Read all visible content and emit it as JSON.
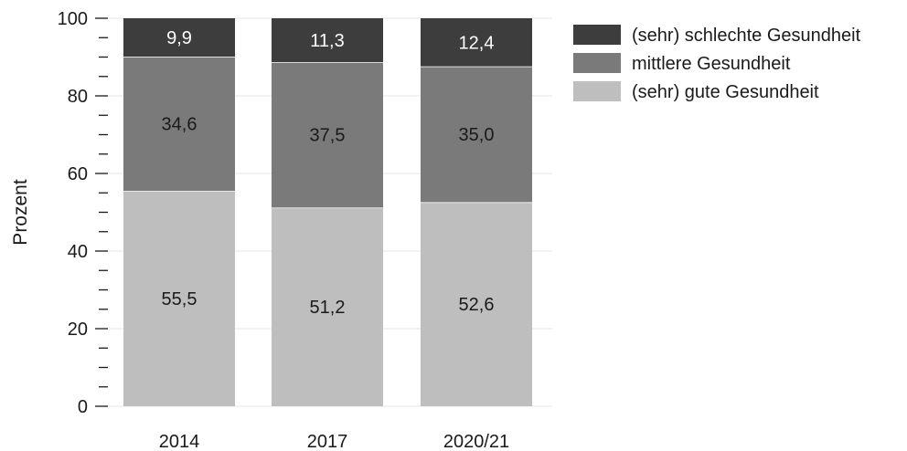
{
  "chart_data": {
    "type": "bar",
    "stacked": true,
    "categories": [
      "2014",
      "2017",
      "2020/21"
    ],
    "series": [
      {
        "name": "(sehr) gute Gesundheit",
        "values": [
          55.5,
          51.2,
          52.6
        ],
        "labels": [
          "55,5",
          "51,2",
          "52,6"
        ],
        "color": "#bebebe",
        "label_color": "#1a1a1a"
      },
      {
        "name": "mittlere Gesundheit",
        "values": [
          34.6,
          37.5,
          35.0
        ],
        "labels": [
          "34,6",
          "37,5",
          "35,0"
        ],
        "color": "#7a7a7a",
        "label_color": "#1a1a1a"
      },
      {
        "name": "(sehr) schlechte Gesundheit",
        "values": [
          9.9,
          11.3,
          12.4
        ],
        "labels": [
          "9,9",
          "11,3",
          "12,4"
        ],
        "color": "#3d3d3d",
        "label_color": "#ffffff"
      }
    ],
    "legend_order": [
      "(sehr) schlechte Gesundheit",
      "mittlere Gesundheit",
      "(sehr) gute Gesundheit"
    ],
    "ylabel": "Prozent",
    "ylim": [
      0,
      100
    ],
    "yticks": [
      0,
      20,
      40,
      60,
      80,
      100
    ],
    "grid": true,
    "legend_position": "top-right"
  }
}
